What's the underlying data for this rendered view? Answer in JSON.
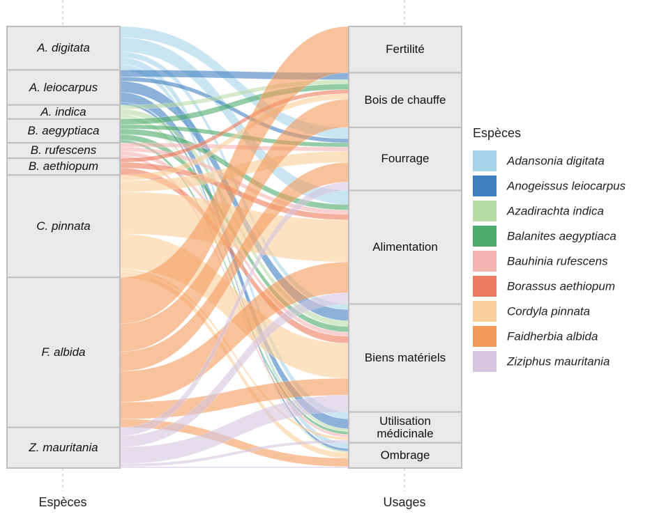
{
  "chart_data": {
    "type": "alluvial",
    "axis_labels": [
      "Espèces",
      "Usages"
    ],
    "legend_title": "Espèces",
    "categories": [
      "Fertilité",
      "Bois de chauffe",
      "Fourrage",
      "Alimentation",
      "Biens matériels",
      "Utilisation médicinale",
      "Ombrage"
    ],
    "series": [
      {
        "name": "Adansonia digitata",
        "label": "A. digitata",
        "color": "#a6d3e9",
        "values": [
          0,
          0,
          8,
          10,
          4,
          5,
          4
        ]
      },
      {
        "name": "Anogeissus leiocarpus",
        "label": "A. leiocarpus",
        "color": "#3f7fc0",
        "values": [
          0,
          5,
          3,
          0,
          8,
          7,
          2
        ]
      },
      {
        "name": "Azadirachta indica",
        "label": "A. indica",
        "color": "#b8dca6",
        "values": [
          0,
          3,
          0,
          0,
          4,
          2,
          1
        ]
      },
      {
        "name": "Balanites aegyptiaca",
        "label": "B. aegyptiaca",
        "color": "#4caa6a",
        "values": [
          0,
          4,
          3,
          4,
          4,
          2,
          0
        ]
      },
      {
        "name": "Bauhinia rufescens",
        "label": "B. rufescens",
        "color": "#f5b3b0",
        "values": [
          0,
          0,
          3,
          3,
          3,
          2,
          0
        ]
      },
      {
        "name": "Borassus aethiopum",
        "label": "B. aethiopum",
        "color": "#ec7a5c",
        "values": [
          0,
          3,
          0,
          4,
          5,
          0,
          0
        ]
      },
      {
        "name": "Cordyla pinnata",
        "label": "C. pinnata",
        "color": "#fbcf99",
        "values": [
          0,
          4,
          8,
          30,
          25,
          2,
          4
        ]
      },
      {
        "name": "Faidherbia albida",
        "label": "F. albida",
        "color": "#f39a5a",
        "values": [
          33,
          20,
          14,
          22,
          12,
          0,
          6
        ]
      },
      {
        "name": "Ziziphus mauritania",
        "label": "Z. mauritania",
        "color": "#d5c4e0",
        "values": [
          0,
          0,
          6,
          8,
          12,
          2,
          1
        ]
      }
    ]
  }
}
